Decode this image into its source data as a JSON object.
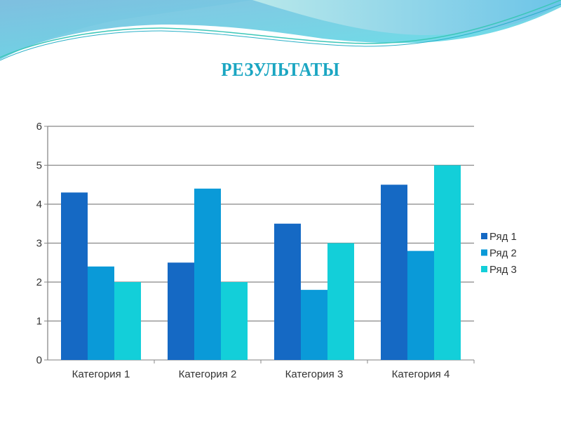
{
  "slide": {
    "title": "РЕЗУЛЬТАТЫ"
  },
  "chart_data": {
    "type": "bar",
    "title": "",
    "xlabel": "",
    "ylabel": "",
    "categories": [
      "Категория 1",
      "Категория 2",
      "Категория 3",
      "Категория 4"
    ],
    "series": [
      {
        "name": "Ряд 1",
        "values": [
          4.3,
          2.5,
          3.5,
          4.5
        ],
        "color": "#1569c4"
      },
      {
        "name": "Ряд 2",
        "values": [
          2.4,
          4.4,
          1.8,
          2.8
        ],
        "color": "#0a9ad8"
      },
      {
        "name": "Ряд 3",
        "values": [
          2,
          2,
          3,
          5
        ],
        "color": "#13cfd9"
      }
    ],
    "ylim": [
      0,
      6
    ],
    "yticks": [
      0,
      1,
      2,
      3,
      4,
      5,
      6
    ],
    "grid": true,
    "legend": "right"
  }
}
